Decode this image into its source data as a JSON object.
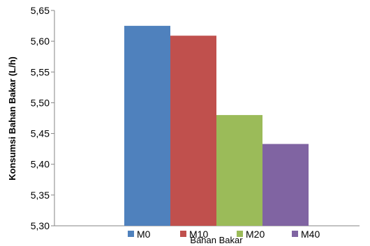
{
  "chart_data": {
    "type": "bar",
    "xlabel": "Bahan Bakar",
    "ylabel": "Konsumsi Bahan Bakar (L/h)",
    "ylim": [
      5.3,
      5.65
    ],
    "yticks": [
      "5,30",
      "5,35",
      "5,40",
      "5,45",
      "5,50",
      "5,55",
      "5,60",
      "5,65"
    ],
    "grid": false,
    "legend_position": "bottom",
    "series": [
      {
        "name": "M0",
        "value": 5.625,
        "color": "#4F81BD"
      },
      {
        "name": "M10",
        "value": 5.609,
        "color": "#C0504D"
      },
      {
        "name": "M20",
        "value": 5.48,
        "color": "#9BBB59"
      },
      {
        "name": "M40",
        "value": 5.433,
        "color": "#8064A2"
      }
    ]
  }
}
